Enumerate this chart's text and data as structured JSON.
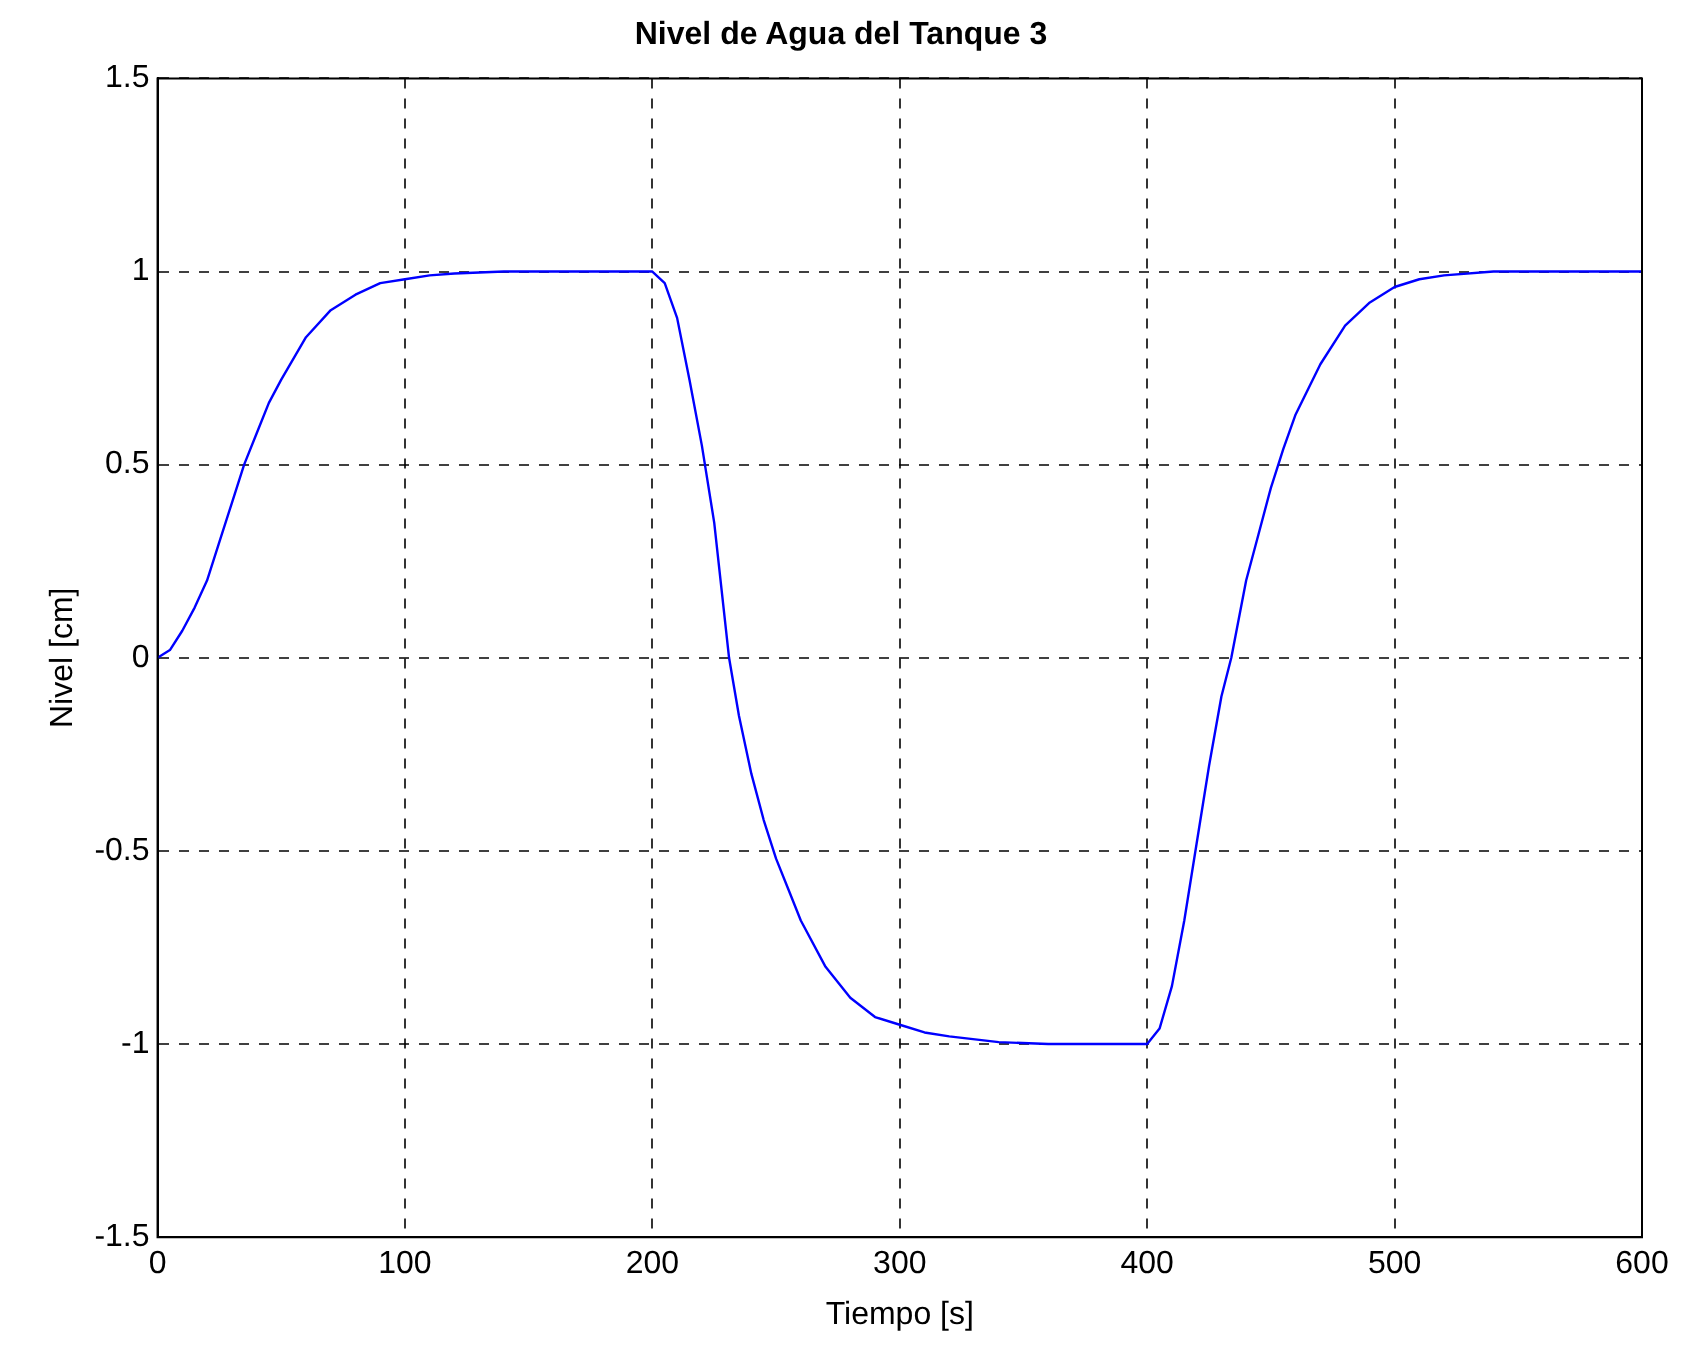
{
  "chart_data": {
    "type": "line",
    "title": "Nivel de Agua del Tanque 3",
    "xlabel": "Tiempo [s]",
    "ylabel": "Nivel [cm]",
    "xlim": [
      0,
      600
    ],
    "xticks": [
      0,
      100,
      200,
      300,
      400,
      500,
      600
    ],
    "ylim": [
      -1.5,
      1.5
    ],
    "yticks": [
      -1.5,
      -1,
      -0.5,
      0,
      0.5,
      1,
      1.5
    ],
    "grid": true,
    "line_style": "solid",
    "marker": "none",
    "legend": false,
    "series": [
      {
        "color": "#0000ff",
        "x": [
          0,
          5,
          10,
          15,
          20,
          25,
          30,
          35,
          40,
          45,
          50,
          60,
          70,
          80,
          90,
          100,
          110,
          120,
          140,
          160,
          180,
          200,
          205,
          210,
          215,
          220,
          225,
          231,
          235,
          240,
          245,
          250,
          255,
          260,
          270,
          280,
          290,
          300,
          310,
          320,
          340,
          360,
          380,
          400,
          405,
          410,
          415,
          420,
          425,
          430,
          434,
          440,
          445,
          450,
          455,
          460,
          470,
          480,
          490,
          500,
          510,
          520,
          540,
          560,
          580,
          600
        ],
        "values": [
          0,
          0.02,
          0.07,
          0.13,
          0.2,
          0.3,
          0.4,
          0.5,
          0.58,
          0.66,
          0.72,
          0.83,
          0.9,
          0.94,
          0.97,
          0.98,
          0.99,
          0.995,
          1,
          1,
          1,
          1,
          0.97,
          0.88,
          0.72,
          0.55,
          0.35,
          0,
          -0.15,
          -0.3,
          -0.42,
          -0.52,
          -0.6,
          -0.68,
          -0.8,
          -0.88,
          -0.93,
          -0.95,
          -0.97,
          -0.98,
          -0.995,
          -1,
          -1,
          -1,
          -0.96,
          -0.85,
          -0.68,
          -0.48,
          -0.28,
          -0.1,
          0,
          0.2,
          0.32,
          0.44,
          0.54,
          0.63,
          0.76,
          0.86,
          0.92,
          0.96,
          0.98,
          0.99,
          1,
          1,
          1,
          1
        ]
      }
    ]
  }
}
